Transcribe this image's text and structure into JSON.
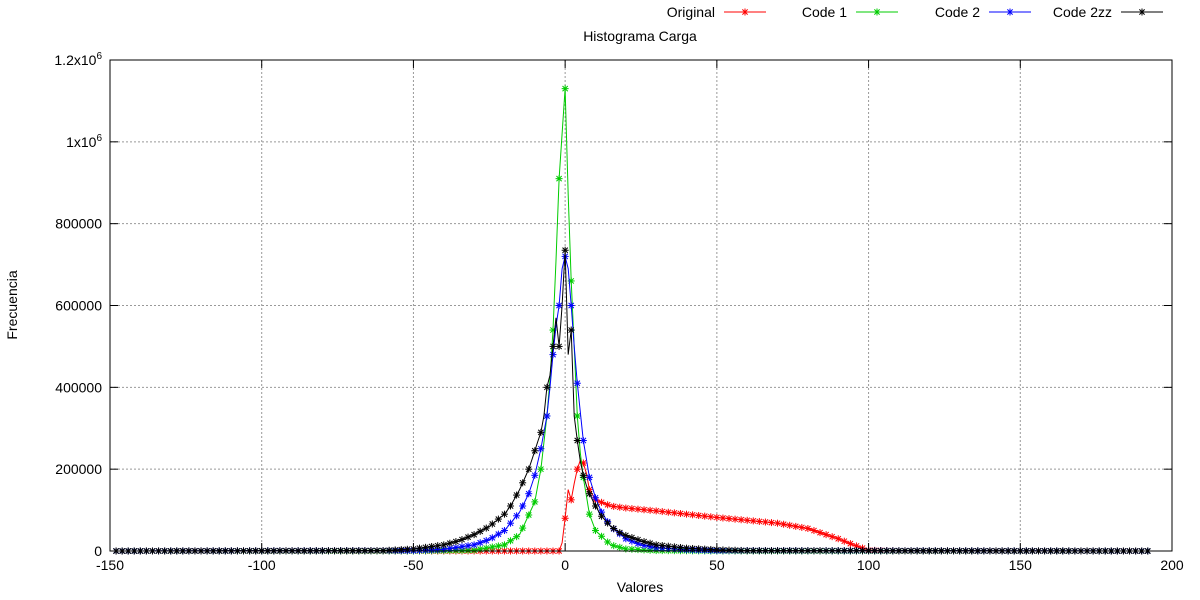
{
  "chart_data": {
    "type": "line",
    "title": "Histograma Carga",
    "xlabel": "Valores",
    "ylabel": "Frecuencia",
    "xlim": [
      -150,
      200
    ],
    "ylim": [
      0,
      1200000
    ],
    "grid": true,
    "legend_position": "top-right",
    "x_ticks": [
      {
        "value": -150,
        "label": "-150"
      },
      {
        "value": -100,
        "label": "-100"
      },
      {
        "value": -50,
        "label": "-50"
      },
      {
        "value": 0,
        "label": "0"
      },
      {
        "value": 50,
        "label": "50"
      },
      {
        "value": 100,
        "label": "100"
      },
      {
        "value": 150,
        "label": "150"
      },
      {
        "value": 200,
        "label": "200"
      }
    ],
    "y_ticks": [
      {
        "value": 0,
        "label": "0"
      },
      {
        "value": 200000,
        "label": "200000"
      },
      {
        "value": 400000,
        "label": "400000"
      },
      {
        "value": 600000,
        "label": "600000"
      },
      {
        "value": 800000,
        "label": "800000"
      },
      {
        "value": 1000000,
        "label": "1x10",
        "sup": "6"
      },
      {
        "value": 1200000,
        "label": "1.2x10",
        "sup": "6"
      }
    ],
    "series": [
      {
        "name": "Original",
        "color": "#ff0000",
        "x": [
          -148,
          -20,
          -5,
          -2,
          -1,
          0,
          1,
          2,
          3,
          4,
          5,
          6,
          7,
          8,
          10,
          15,
          20,
          30,
          40,
          50,
          60,
          70,
          80,
          90,
          95,
          100,
          110,
          150,
          193
        ],
        "y": [
          0,
          0,
          0,
          0,
          20000,
          80000,
          150000,
          125000,
          165000,
          200000,
          222000,
          215000,
          190000,
          150000,
          125000,
          110000,
          105000,
          98000,
          90000,
          82000,
          75000,
          68000,
          55000,
          30000,
          15000,
          2000,
          0,
          0,
          0
        ]
      },
      {
        "name": "Code 1",
        "color": "#00cc00",
        "x": [
          -148,
          -50,
          -30,
          -20,
          -15,
          -10,
          -8,
          -6,
          -5,
          -4,
          -3,
          -2,
          -1,
          0,
          1,
          2,
          3,
          4,
          5,
          6,
          8,
          10,
          15,
          20,
          30,
          50,
          193
        ],
        "y": [
          0,
          0,
          2000,
          15000,
          40000,
          120000,
          200000,
          330000,
          420000,
          540000,
          710000,
          910000,
          1020000,
          1130000,
          870000,
          660000,
          500000,
          330000,
          240000,
          180000,
          90000,
          50000,
          15000,
          5000,
          1000,
          0,
          0
        ]
      },
      {
        "name": "Code 2",
        "color": "#0000ff",
        "x": [
          -148,
          -50,
          -40,
          -30,
          -25,
          -20,
          -15,
          -12,
          -10,
          -8,
          -6,
          -5,
          -4,
          -3,
          -2,
          -1,
          0,
          1,
          2,
          3,
          4,
          5,
          6,
          8,
          10,
          12,
          15,
          20,
          25,
          30,
          40,
          50,
          193
        ],
        "y": [
          0,
          1000,
          4000,
          15000,
          28000,
          50000,
          95000,
          140000,
          185000,
          250000,
          330000,
          400000,
          480000,
          550000,
          600000,
          690000,
          720000,
          690000,
          600000,
          500000,
          410000,
          340000,
          270000,
          180000,
          130000,
          95000,
          60000,
          30000,
          15000,
          8000,
          3000,
          1000,
          0
        ]
      },
      {
        "name": "Code 2zz",
        "color": "#000000",
        "x": [
          -148,
          -60,
          -50,
          -40,
          -35,
          -30,
          -25,
          -20,
          -18,
          -15,
          -12,
          -10,
          -8,
          -7,
          -6,
          -5,
          -4,
          -3,
          -2,
          -1,
          0,
          1,
          2,
          3,
          4,
          5,
          6,
          7,
          8,
          10,
          12,
          15,
          18,
          20,
          25,
          30,
          40,
          50,
          60,
          193
        ],
        "y": [
          0,
          1000,
          5000,
          15000,
          25000,
          40000,
          60000,
          90000,
          110000,
          150000,
          200000,
          245000,
          290000,
          330000,
          400000,
          430000,
          500000,
          570000,
          500000,
          600000,
          735000,
          480000,
          540000,
          330000,
          270000,
          220000,
          185000,
          160000,
          140000,
          110000,
          85000,
          60000,
          45000,
          38000,
          25000,
          15000,
          7000,
          3000,
          1000,
          0
        ]
      }
    ]
  }
}
